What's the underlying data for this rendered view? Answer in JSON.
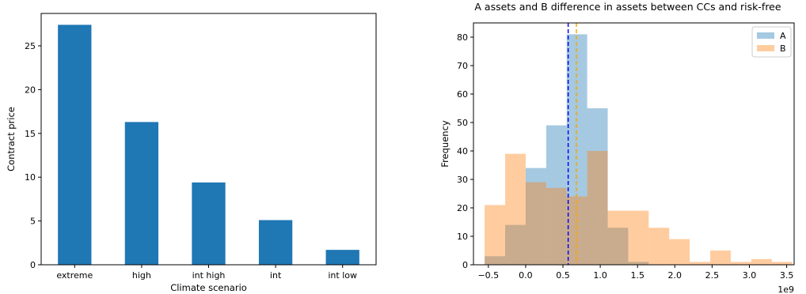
{
  "chart_data": [
    {
      "type": "bar",
      "title": "",
      "xlabel": "Climate scenario",
      "ylabel": "Contract price",
      "categories": [
        "extreme",
        "high",
        "int high",
        "int",
        "int low"
      ],
      "values": [
        27.4,
        16.3,
        9.4,
        5.1,
        1.7
      ],
      "ylim": [
        0,
        28.7
      ],
      "yticks": [
        0,
        5,
        10,
        15,
        20,
        25
      ],
      "color": "#1f77b4",
      "grid": false
    },
    {
      "type": "histogram",
      "title": "A assets and B difference in assets between CCs and risk-free",
      "xlabel": "",
      "ylabel": "Frequency",
      "x_offset_label": "1e9",
      "xlim": [
        -0.7,
        3.6
      ],
      "ylim": [
        0,
        85
      ],
      "xticks": [
        -0.5,
        0.0,
        0.5,
        1.0,
        1.5,
        2.0,
        2.5,
        3.0,
        3.5
      ],
      "xtick_labels": [
        "−0.5",
        "0.0",
        "0.5",
        "1.0",
        "1.5",
        "2.0",
        "2.5",
        "3.0",
        "3.5"
      ],
      "yticks": [
        0,
        10,
        20,
        30,
        40,
        50,
        60,
        70,
        80
      ],
      "legend_position": "top-right",
      "series": [
        {
          "name": "A",
          "color": "#1f77b4",
          "bin_edges": [
            -0.55,
            -0.275,
            0.0,
            0.275,
            0.55,
            0.825,
            1.1,
            1.375,
            1.65
          ],
          "counts": [
            3,
            14,
            34,
            49,
            81,
            55,
            13,
            1
          ]
        },
        {
          "name": "B",
          "color": "#ff7f0e",
          "bin_edges": [
            -0.55,
            -0.275,
            0.0,
            0.275,
            0.55,
            0.825,
            1.1,
            1.375,
            1.65,
            1.925,
            2.2,
            2.475,
            2.75,
            3.025,
            3.3,
            3.575
          ],
          "counts": [
            21,
            39,
            29,
            27,
            24,
            40,
            19,
            19,
            13,
            9,
            1,
            5,
            1,
            2,
            1
          ]
        }
      ],
      "vlines": [
        {
          "x": 0.57,
          "color": "#0000ff",
          "style": "dashed"
        },
        {
          "x": 0.68,
          "color": "#ffa500",
          "style": "dashed"
        }
      ]
    }
  ]
}
